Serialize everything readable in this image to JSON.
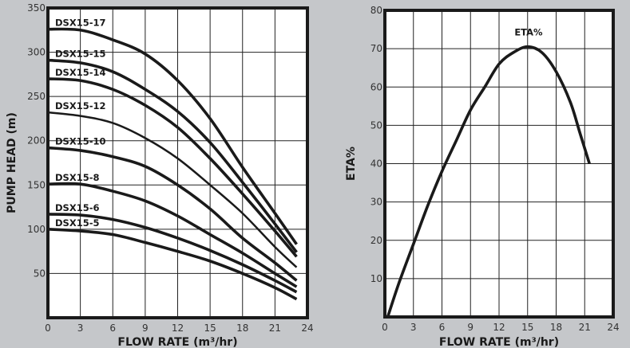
{
  "chart_data": [
    {
      "type": "line",
      "xlabel": "FLOW RATE (m³/hr)",
      "ylabel": "PUMP HEAD (m)",
      "xlim": [
        0,
        24
      ],
      "ylim": [
        0,
        350
      ],
      "xticks": [
        "0",
        "3",
        "6",
        "9",
        "12",
        "15",
        "18",
        "21",
        "24"
      ],
      "yticks": [
        "50",
        "100",
        "150",
        "200",
        "250",
        "300",
        "350"
      ],
      "grid": true,
      "x": [
        0,
        3,
        6,
        9,
        12,
        15,
        18,
        21,
        23
      ],
      "series": [
        {
          "name": "DSX15-17",
          "values": [
            326,
            325,
            314,
            298,
            268,
            225,
            170,
            118,
            83
          ]
        },
        {
          "name": "DSX15-15",
          "values": [
            291,
            288,
            278,
            258,
            233,
            198,
            153,
            106,
            74
          ]
        },
        {
          "name": "DSX15-14",
          "values": [
            270,
            268,
            258,
            240,
            215,
            180,
            140,
            98,
            69
          ]
        },
        {
          "name": "DSX15-12",
          "values": [
            232,
            228,
            220,
            203,
            180,
            150,
            118,
            80,
            57
          ]
        },
        {
          "name": "DSX15-10",
          "values": [
            192,
            189,
            182,
            171,
            150,
            123,
            90,
            62,
            42
          ]
        },
        {
          "name": "DSX15-8",
          "values": [
            151,
            151,
            143,
            132,
            115,
            94,
            73,
            50,
            35
          ]
        },
        {
          "name": "DSX15-6",
          "values": [
            117,
            116,
            111,
            102,
            90,
            76,
            60,
            42,
            29
          ]
        },
        {
          "name": "DSX15-5",
          "values": [
            100,
            98,
            94,
            85,
            75,
            64,
            50,
            34,
            21
          ]
        }
      ]
    },
    {
      "type": "line",
      "xlabel": "FLOW RATE (m³/hr)",
      "ylabel": "ETA%",
      "xlim": [
        0,
        24
      ],
      "ylim": [
        0,
        80
      ],
      "xticks": [
        "0",
        "3",
        "6",
        "9",
        "12",
        "15",
        "18",
        "21",
        "24"
      ],
      "yticks": [
        "10",
        "20",
        "30",
        "40",
        "50",
        "60",
        "70",
        "80"
      ],
      "grid": true,
      "series": [
        {
          "name": "ETA%",
          "x": [
            0.3,
            1.5,
            3,
            4.5,
            6,
            7.5,
            9,
            10.5,
            12,
            13.5,
            15,
            16.5,
            18,
            19.5,
            20.5,
            21.5
          ],
          "values": [
            0,
            9,
            19,
            29,
            38,
            46,
            54,
            60,
            66,
            69,
            70.5,
            69,
            64,
            56,
            48,
            40
          ]
        }
      ]
    }
  ],
  "colors": {
    "background": "#c5c7ca",
    "plot": "#ffffff",
    "line": "#1a1a1a"
  }
}
